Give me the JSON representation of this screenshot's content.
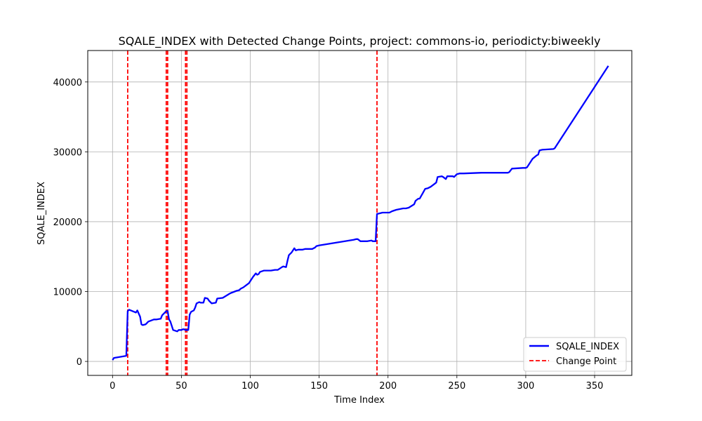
{
  "chart_data": {
    "type": "line",
    "title": "SQALE_INDEX with Detected Change Points, project: commons-io, periodicty:biweekly",
    "xlabel": "Time Index",
    "ylabel": "SQALE_INDEX",
    "xlim": [
      -18,
      377
    ],
    "ylim": [
      -2000,
      44500
    ],
    "xticks": [
      0,
      50,
      100,
      150,
      200,
      250,
      300,
      350
    ],
    "xtick_labels": [
      "0",
      "50",
      "100",
      "150",
      "200",
      "250",
      "300",
      "350"
    ],
    "yticks": [
      0,
      10000,
      20000,
      30000,
      40000
    ],
    "ytick_labels": [
      "0",
      "10000",
      "20000",
      "30000",
      "40000"
    ],
    "grid": true,
    "legend_placement": "lower-right",
    "series": [
      {
        "name": "SQALE_INDEX",
        "color": "#0000ff",
        "style": "solid",
        "x": [
          0,
          1,
          10,
          11,
          12,
          17,
          18,
          20,
          21,
          22,
          24,
          26,
          30,
          32,
          35,
          36,
          39,
          40,
          41,
          42,
          44,
          47,
          48,
          50,
          51,
          52,
          53,
          55,
          56,
          57,
          59,
          60,
          61,
          63,
          64,
          66,
          67,
          69,
          70,
          72,
          75,
          76,
          80,
          85,
          86,
          90,
          92,
          93,
          95,
          97,
          99,
          102,
          104,
          105,
          106,
          107,
          110,
          113,
          115,
          118,
          120,
          123,
          124,
          126,
          127,
          128,
          129,
          130,
          132,
          133,
          135,
          138,
          140,
          145,
          147,
          148,
          150,
          175,
          177,
          178,
          180,
          185,
          188,
          189,
          191,
          192,
          196,
          199,
          201,
          203,
          206,
          211,
          213,
          215,
          219,
          220,
          222,
          223,
          225,
          227,
          229,
          231,
          233,
          235,
          236,
          239,
          240,
          242,
          243,
          245,
          247,
          248,
          250,
          252,
          255,
          268,
          270,
          287,
          288,
          290,
          298,
          300,
          301,
          305,
          308,
          309,
          310,
          312,
          320,
          321,
          360
        ],
        "y": [
          200,
          500,
          800,
          7200,
          7400,
          7000,
          7300,
          6400,
          5300,
          5200,
          5300,
          5700,
          6000,
          6000,
          6100,
          6600,
          7200,
          7200,
          6000,
          5700,
          4500,
          4300,
          4500,
          4500,
          4600,
          4600,
          4500,
          4500,
          6700,
          7100,
          7300,
          7700,
          8300,
          8500,
          8400,
          8400,
          9100,
          9000,
          8700,
          8300,
          8400,
          9000,
          9100,
          9700,
          9800,
          10100,
          10200,
          10400,
          10600,
          10900,
          11200,
          12100,
          12600,
          12400,
          12500,
          12800,
          13000,
          13000,
          13000,
          13100,
          13100,
          13500,
          13600,
          13500,
          14400,
          15200,
          15400,
          15600,
          16200,
          15900,
          16000,
          16000,
          16100,
          16100,
          16300,
          16500,
          16600,
          17400,
          17500,
          17500,
          17200,
          17200,
          17300,
          17200,
          17200,
          21100,
          21300,
          21300,
          21300,
          21500,
          21700,
          21900,
          21900,
          22000,
          22500,
          23000,
          23300,
          23300,
          24000,
          24700,
          24800,
          25000,
          25300,
          25600,
          26400,
          26500,
          26400,
          26100,
          26500,
          26500,
          26500,
          26400,
          26800,
          26900,
          26900,
          27000,
          27000,
          27000,
          27100,
          27600,
          27700,
          27700,
          27800,
          29000,
          29500,
          29600,
          30200,
          30300,
          30400,
          30500,
          42300
        ]
      },
      {
        "name": "Change Point",
        "color": "#ff0000",
        "style": "dashed",
        "x_positions": [
          11,
          39,
          40,
          53,
          54,
          192
        ]
      }
    ]
  }
}
